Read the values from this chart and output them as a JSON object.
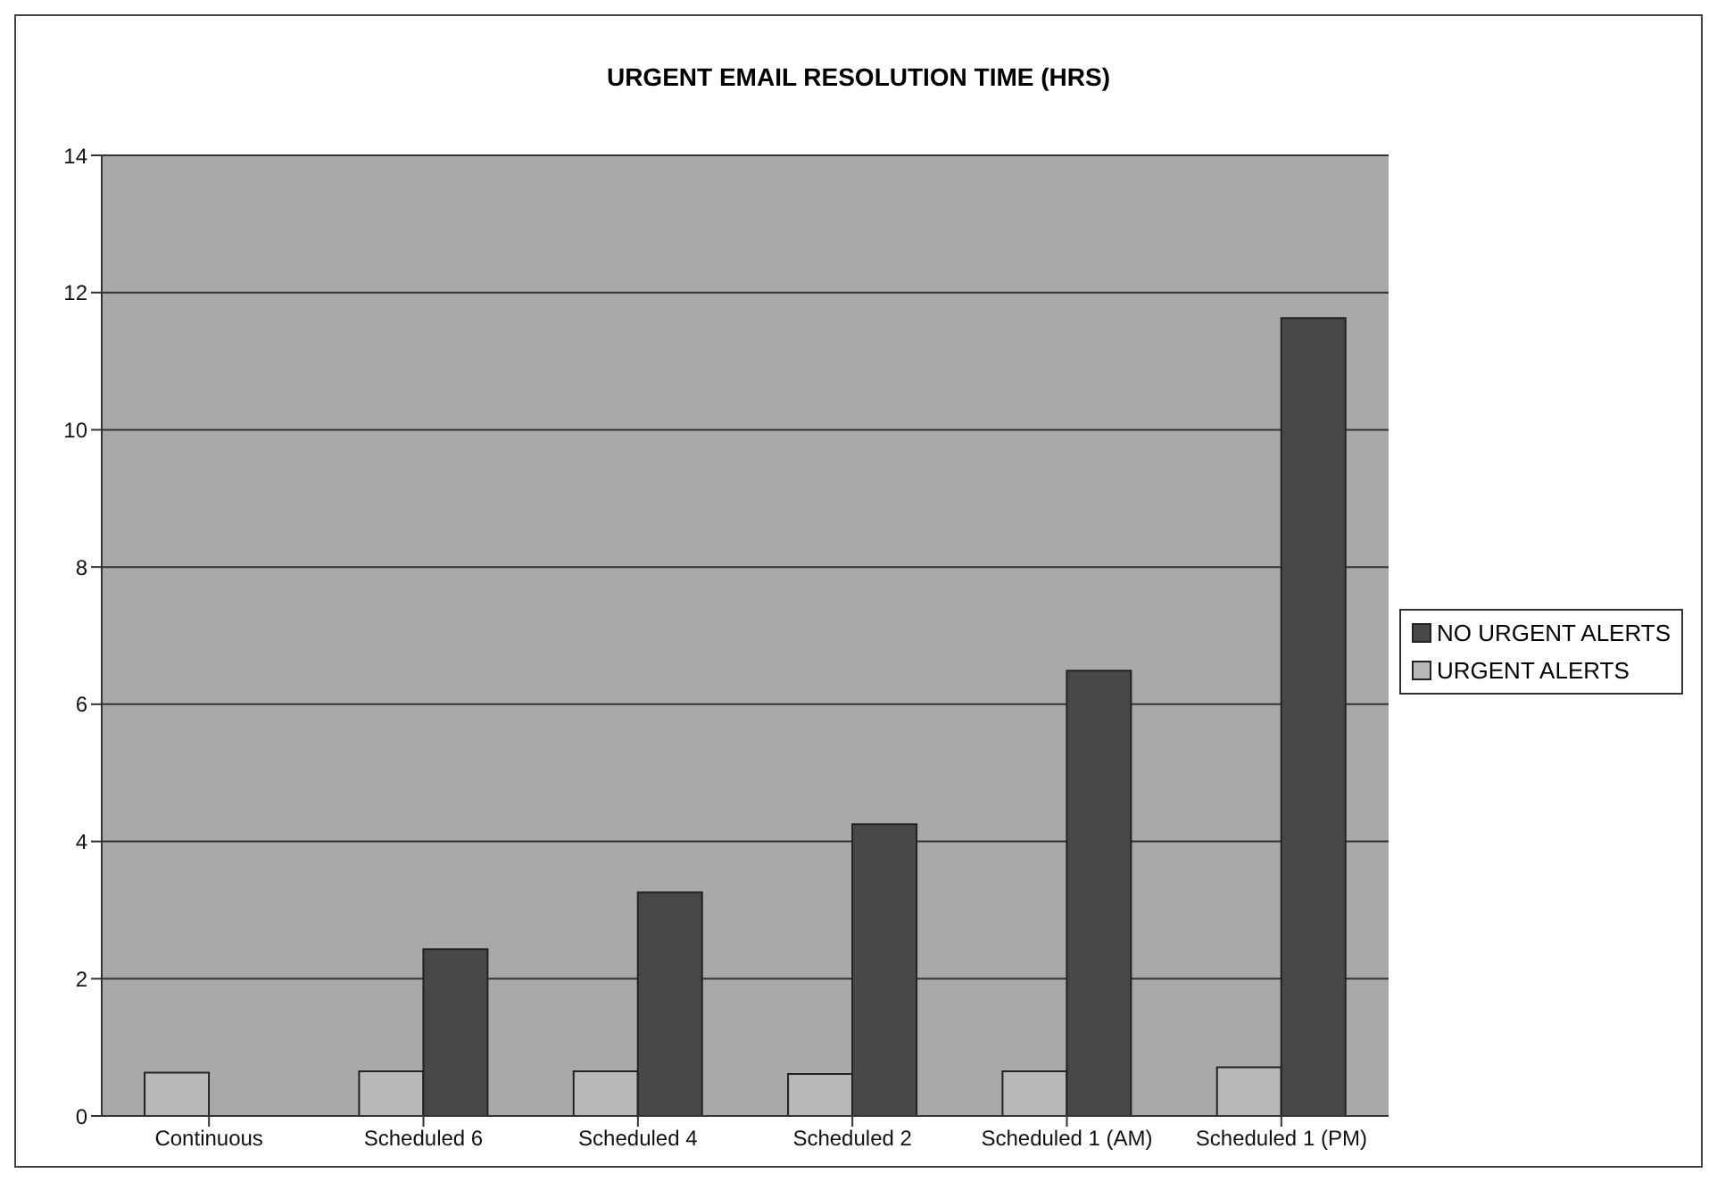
{
  "chart_data": {
    "type": "bar",
    "title": "URGENT EMAIL RESOLUTION TIME (HRS)",
    "categories": [
      "Continuous",
      "Scheduled 6",
      "Scheduled 4",
      "Scheduled 2",
      "Scheduled 1 (AM)",
      "Scheduled 1 (PM)"
    ],
    "series": [
      {
        "name": "URGENT ALERTS",
        "color": "#b8b8b8",
        "values": [
          0.63,
          0.65,
          0.65,
          0.61,
          0.65,
          0.71
        ]
      },
      {
        "name": "NO URGENT ALERTS",
        "color": "#484848",
        "values": [
          null,
          2.43,
          3.26,
          4.25,
          6.49,
          11.63
        ]
      }
    ],
    "ylim": [
      0,
      14
    ],
    "yticks": [
      0,
      2,
      4,
      6,
      8,
      10,
      12,
      14
    ],
    "grid": "y",
    "legend": "right"
  }
}
